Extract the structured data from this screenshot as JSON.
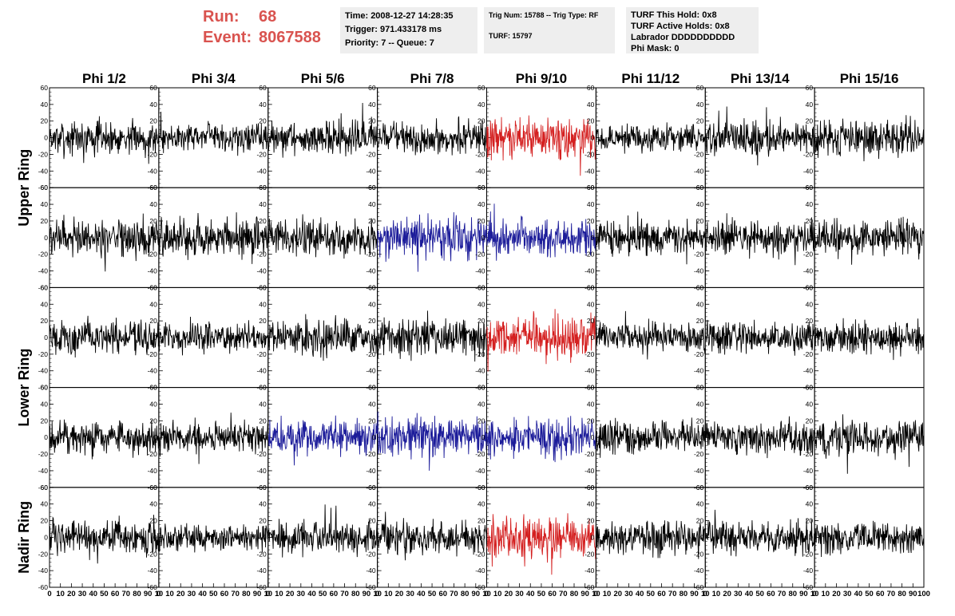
{
  "header": {
    "run_label": "Run:",
    "run_value": "68",
    "event_label": "Event:",
    "event_value": "8067588",
    "time": "Time: 2008-12-27 14:28:35",
    "trigger": "Trigger: 971.433178 ms",
    "priority": "Priority: 7 -- Queue: 7",
    "trig_num": "Trig Num: 15788 -- Trig Type: RF",
    "turf": "TURF: 15797",
    "turf_hold": "TURF This Hold: 0x8",
    "turf_active": "TURF Active Holds: 0x8",
    "labrador": "Labrador DDDDDDDDDD",
    "phi_mask": "Phi Mask: 0"
  },
  "chart_data": {
    "type": "line",
    "title": "",
    "column_labels": [
      "Phi 1/2",
      "Phi 3/4",
      "Phi 5/6",
      "Phi 7/8",
      "Phi 9/10",
      "Phi 11/12",
      "Phi 13/14",
      "Phi 15/16"
    ],
    "ring_labels": [
      "Upper Ring",
      "Lower Ring",
      "Nadir Ring"
    ],
    "rows": 5,
    "cols": 8,
    "xlim": [
      0,
      100
    ],
    "ylim": [
      -60,
      60
    ],
    "y_ticks": [
      60,
      40,
      20,
      0,
      -20,
      -40,
      -60
    ],
    "x_tick_labels": [
      "0",
      "10",
      "20",
      "30",
      "40",
      "50",
      "60",
      "70",
      "80",
      "90",
      "10"
    ],
    "x_tick_labels_last": [
      "0",
      "10",
      "20",
      "30",
      "40",
      "50",
      "60",
      "70",
      "80",
      "90",
      "100"
    ],
    "samples_per_trace": 260,
    "colors": {
      "black": "#000000",
      "red": "#d42020",
      "blue": "#1c1c9a"
    },
    "panels": [
      {
        "row": 0,
        "col": 0,
        "color": "black",
        "amp": 18
      },
      {
        "row": 0,
        "col": 1,
        "color": "black",
        "amp": 15
      },
      {
        "row": 0,
        "col": 2,
        "color": "black",
        "amp": 18
      },
      {
        "row": 0,
        "col": 3,
        "color": "black",
        "amp": 17
      },
      {
        "row": 0,
        "col": 4,
        "color": "red",
        "amp": 22
      },
      {
        "row": 0,
        "col": 5,
        "color": "black",
        "amp": 14
      },
      {
        "row": 0,
        "col": 6,
        "color": "black",
        "amp": 18
      },
      {
        "row": 0,
        "col": 7,
        "color": "black",
        "amp": 20
      },
      {
        "row": 1,
        "col": 0,
        "color": "black",
        "amp": 20
      },
      {
        "row": 1,
        "col": 1,
        "color": "black",
        "amp": 20
      },
      {
        "row": 1,
        "col": 2,
        "color": "black",
        "amp": 20
      },
      {
        "row": 1,
        "col": 3,
        "color": "blue",
        "amp": 22
      },
      {
        "row": 1,
        "col": 4,
        "color": "blue",
        "amp": 20
      },
      {
        "row": 1,
        "col": 5,
        "color": "black",
        "amp": 18
      },
      {
        "row": 1,
        "col": 6,
        "color": "black",
        "amp": 18
      },
      {
        "row": 1,
        "col": 7,
        "color": "black",
        "amp": 20
      },
      {
        "row": 2,
        "col": 0,
        "color": "black",
        "amp": 18
      },
      {
        "row": 2,
        "col": 1,
        "color": "black",
        "amp": 15
      },
      {
        "row": 2,
        "col": 2,
        "color": "black",
        "amp": 20
      },
      {
        "row": 2,
        "col": 3,
        "color": "black",
        "amp": 20
      },
      {
        "row": 2,
        "col": 4,
        "color": "red",
        "amp": 22
      },
      {
        "row": 2,
        "col": 5,
        "color": "black",
        "amp": 16
      },
      {
        "row": 2,
        "col": 6,
        "color": "black",
        "amp": 18
      },
      {
        "row": 2,
        "col": 7,
        "color": "black",
        "amp": 18
      },
      {
        "row": 3,
        "col": 0,
        "color": "black",
        "amp": 18
      },
      {
        "row": 3,
        "col": 1,
        "color": "black",
        "amp": 16
      },
      {
        "row": 3,
        "col": 2,
        "color": "blue",
        "amp": 20
      },
      {
        "row": 3,
        "col": 3,
        "color": "blue",
        "amp": 22
      },
      {
        "row": 3,
        "col": 4,
        "color": "blue",
        "amp": 20
      },
      {
        "row": 3,
        "col": 5,
        "color": "black",
        "amp": 18
      },
      {
        "row": 3,
        "col": 6,
        "color": "black",
        "amp": 18
      },
      {
        "row": 3,
        "col": 7,
        "color": "black",
        "amp": 20
      },
      {
        "row": 4,
        "col": 0,
        "color": "black",
        "amp": 18
      },
      {
        "row": 4,
        "col": 1,
        "color": "black",
        "amp": 14
      },
      {
        "row": 4,
        "col": 2,
        "color": "black",
        "amp": 18
      },
      {
        "row": 4,
        "col": 3,
        "color": "black",
        "amp": 18
      },
      {
        "row": 4,
        "col": 4,
        "color": "red",
        "amp": 22
      },
      {
        "row": 4,
        "col": 5,
        "color": "black",
        "amp": 17
      },
      {
        "row": 4,
        "col": 6,
        "color": "black",
        "amp": 18
      },
      {
        "row": 4,
        "col": 7,
        "color": "black",
        "amp": 18
      }
    ]
  }
}
